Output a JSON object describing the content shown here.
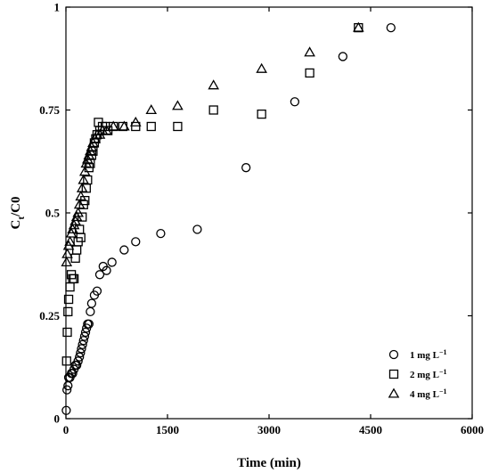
{
  "chart_data": {
    "type": "scatter",
    "xlabel": "Time (min)",
    "ylabel": {
      "main": "C",
      "sub": "t",
      "tail": "/C0"
    },
    "xlim": [
      0,
      6000
    ],
    "ylim": [
      0,
      1
    ],
    "xticks": [
      0,
      1500,
      3000,
      4500,
      6000
    ],
    "xtick_labels": [
      "0",
      "1500",
      "3000",
      "4500",
      "6000"
    ],
    "yticks": [
      0,
      0.25,
      0.5,
      0.75,
      1
    ],
    "ytick_labels": [
      "0",
      "0.25",
      "0.5",
      "0.75",
      "1"
    ],
    "legend_position": "bottom-right",
    "grid": false,
    "series": [
      {
        "name": "1 mg L",
        "name_sup": "−1",
        "marker": "circle",
        "points": [
          [
            5,
            0.02
          ],
          [
            15,
            0.07
          ],
          [
            30,
            0.08
          ],
          [
            40,
            0.1
          ],
          [
            60,
            0.1
          ],
          [
            80,
            0.11
          ],
          [
            100,
            0.11
          ],
          [
            120,
            0.12
          ],
          [
            140,
            0.13
          ],
          [
            160,
            0.13
          ],
          [
            180,
            0.14
          ],
          [
            200,
            0.15
          ],
          [
            215,
            0.16
          ],
          [
            230,
            0.17
          ],
          [
            245,
            0.18
          ],
          [
            260,
            0.19
          ],
          [
            275,
            0.2
          ],
          [
            290,
            0.21
          ],
          [
            305,
            0.22
          ],
          [
            320,
            0.23
          ],
          [
            340,
            0.23
          ],
          [
            360,
            0.26
          ],
          [
            380,
            0.28
          ],
          [
            420,
            0.3
          ],
          [
            460,
            0.31
          ],
          [
            500,
            0.35
          ],
          [
            550,
            0.37
          ],
          [
            600,
            0.36
          ],
          [
            680,
            0.38
          ],
          [
            860,
            0.41
          ],
          [
            1030,
            0.43
          ],
          [
            1400,
            0.45
          ],
          [
            1940,
            0.46
          ],
          [
            2660,
            0.61
          ],
          [
            3380,
            0.77
          ],
          [
            4090,
            0.88
          ],
          [
            4800,
            0.95
          ]
        ]
      },
      {
        "name": "2 mg L",
        "name_sup": "−1",
        "marker": "square",
        "points": [
          [
            10,
            0.14
          ],
          [
            20,
            0.21
          ],
          [
            30,
            0.26
          ],
          [
            40,
            0.29
          ],
          [
            60,
            0.32
          ],
          [
            80,
            0.35
          ],
          [
            100,
            0.34
          ],
          [
            120,
            0.34
          ],
          [
            140,
            0.39
          ],
          [
            160,
            0.41
          ],
          [
            180,
            0.43
          ],
          [
            200,
            0.46
          ],
          [
            220,
            0.44
          ],
          [
            240,
            0.49
          ],
          [
            260,
            0.52
          ],
          [
            280,
            0.53
          ],
          [
            300,
            0.56
          ],
          [
            320,
            0.58
          ],
          [
            340,
            0.61
          ],
          [
            360,
            0.62
          ],
          [
            380,
            0.64
          ],
          [
            400,
            0.65
          ],
          [
            420,
            0.67
          ],
          [
            440,
            0.68
          ],
          [
            460,
            0.69
          ],
          [
            480,
            0.72
          ],
          [
            500,
            0.7
          ],
          [
            540,
            0.71
          ],
          [
            580,
            0.71
          ],
          [
            620,
            0.7
          ],
          [
            700,
            0.71
          ],
          [
            840,
            0.71
          ],
          [
            1030,
            0.71
          ],
          [
            1260,
            0.71
          ],
          [
            1650,
            0.71
          ],
          [
            2180,
            0.75
          ],
          [
            2890,
            0.74
          ],
          [
            3600,
            0.84
          ],
          [
            4320,
            0.95
          ]
        ]
      },
      {
        "name": "4 mg L",
        "name_sup": "−1",
        "marker": "triangle",
        "points": [
          [
            10,
            0.38
          ],
          [
            20,
            0.4
          ],
          [
            40,
            0.42
          ],
          [
            60,
            0.43
          ],
          [
            80,
            0.45
          ],
          [
            100,
            0.46
          ],
          [
            120,
            0.47
          ],
          [
            140,
            0.48
          ],
          [
            160,
            0.49
          ],
          [
            180,
            0.5
          ],
          [
            200,
            0.52
          ],
          [
            220,
            0.54
          ],
          [
            240,
            0.56
          ],
          [
            260,
            0.58
          ],
          [
            280,
            0.6
          ],
          [
            300,
            0.62
          ],
          [
            320,
            0.63
          ],
          [
            340,
            0.64
          ],
          [
            360,
            0.65
          ],
          [
            380,
            0.66
          ],
          [
            400,
            0.67
          ],
          [
            430,
            0.68
          ],
          [
            460,
            0.69
          ],
          [
            500,
            0.69
          ],
          [
            540,
            0.7
          ],
          [
            600,
            0.7
          ],
          [
            700,
            0.71
          ],
          [
            860,
            0.71
          ],
          [
            1030,
            0.72
          ],
          [
            1260,
            0.75
          ],
          [
            1650,
            0.76
          ],
          [
            2180,
            0.81
          ],
          [
            2890,
            0.85
          ],
          [
            3600,
            0.89
          ],
          [
            4320,
            0.95
          ]
        ]
      }
    ]
  }
}
